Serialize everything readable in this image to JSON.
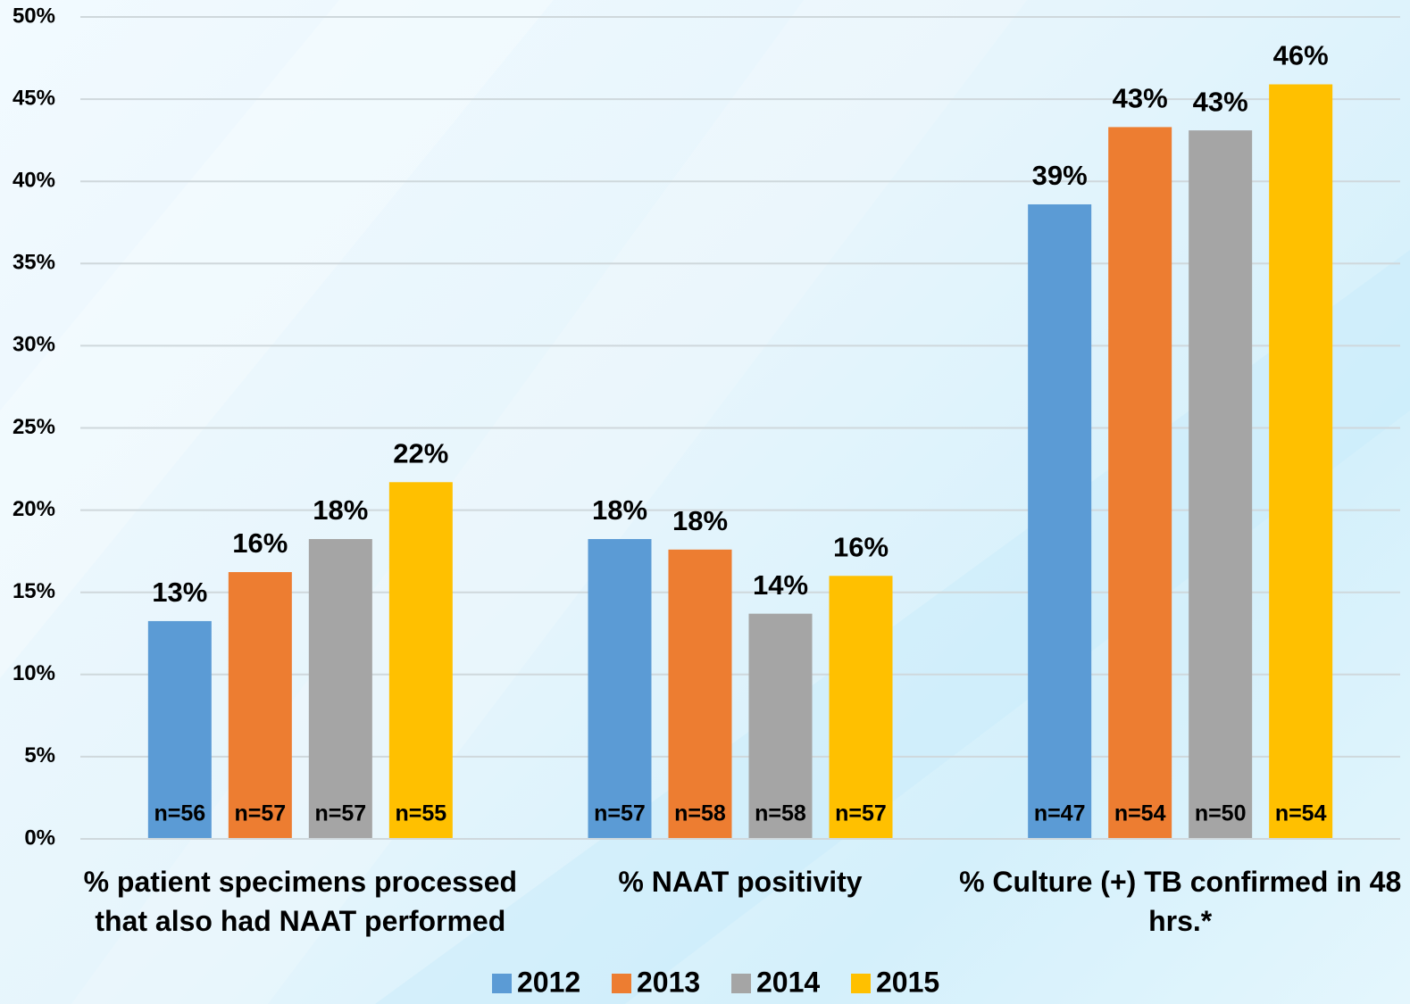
{
  "chart_data": {
    "type": "bar",
    "categories": [
      "% patient specimens processed that also had NAAT performed",
      "% NAAT positivity",
      "% Culture (+)  TB confirmed in 48 hrs.*"
    ],
    "series": [
      {
        "name": "2012",
        "color": "#5b9bd5",
        "values": [
          13.25,
          18.24,
          38.6
        ],
        "value_labels": [
          "13%",
          "18%",
          "39%"
        ],
        "n_labels": [
          "n=56",
          "n=57",
          "n=47"
        ]
      },
      {
        "name": "2013",
        "color": "#ed7d31",
        "values": [
          16.23,
          17.6,
          43.3
        ],
        "value_labels": [
          "16%",
          "18%",
          "43%"
        ],
        "n_labels": [
          "n=57",
          "n=58",
          "n=54"
        ]
      },
      {
        "name": "2014",
        "color": "#a5a5a5",
        "values": [
          18.24,
          13.7,
          43.1
        ],
        "value_labels": [
          "18%",
          "14%",
          "43%"
        ],
        "n_labels": [
          "n=57",
          "n=58",
          "n=50"
        ]
      },
      {
        "name": "2015",
        "color": "#ffc000",
        "values": [
          21.7,
          16.0,
          45.9
        ],
        "value_labels": [
          "22%",
          "16%",
          "46%"
        ],
        "n_labels": [
          "n=55",
          "n=57",
          "n=54"
        ]
      }
    ],
    "ylim": [
      0,
      50
    ],
    "yticks": [
      {
        "value": 0,
        "label": "0%"
      },
      {
        "value": 5,
        "label": "5%"
      },
      {
        "value": 10,
        "label": "10%"
      },
      {
        "value": 15,
        "label": "15%"
      },
      {
        "value": 20,
        "label": "20%"
      },
      {
        "value": 25,
        "label": "25%"
      },
      {
        "value": 30,
        "label": "30%"
      },
      {
        "value": 35,
        "label": "35%"
      },
      {
        "value": 40,
        "label": "40%"
      },
      {
        "value": 45,
        "label": "45%"
      },
      {
        "value": 50,
        "label": "50%"
      }
    ],
    "grid": true,
    "legend": "bottom"
  }
}
